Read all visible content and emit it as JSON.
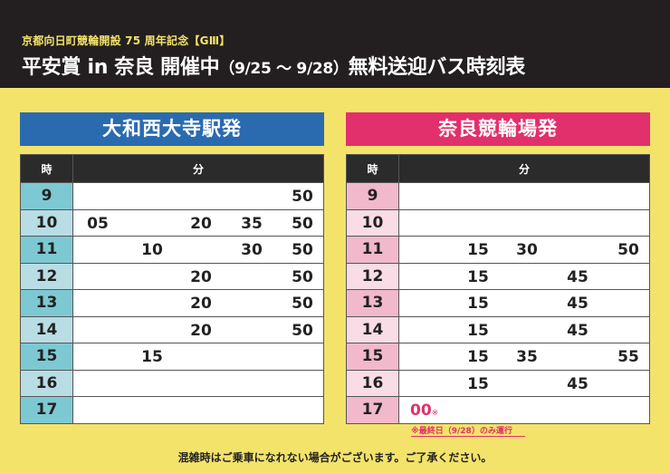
{
  "header": {
    "subtitle": "京都向日町競輪開設 75 周年記念【GⅢ】",
    "title_main": "平安賞 in 奈良 開催中",
    "title_dates": "（9/25 ～ 9/28）",
    "title_tail": "無料送迎バス時刻表"
  },
  "timetables": [
    {
      "title": "大和西大寺駅発",
      "col_hour": "時",
      "col_minute": "分",
      "rows": [
        {
          "hour": "9",
          "minutes": [
            "",
            "",
            "",
            "",
            "50"
          ]
        },
        {
          "hour": "10",
          "minutes": [
            "05",
            "",
            "20",
            "35",
            "50"
          ]
        },
        {
          "hour": "11",
          "minutes": [
            "",
            "10",
            "",
            "30",
            "50"
          ]
        },
        {
          "hour": "12",
          "minutes": [
            "",
            "",
            "20",
            "",
            "50"
          ]
        },
        {
          "hour": "13",
          "minutes": [
            "",
            "",
            "20",
            "",
            "50"
          ]
        },
        {
          "hour": "14",
          "minutes": [
            "",
            "",
            "20",
            "",
            "50"
          ]
        },
        {
          "hour": "15",
          "minutes": [
            "",
            "15",
            "",
            "",
            ""
          ]
        },
        {
          "hour": "16",
          "minutes": [
            "",
            "",
            "",
            "",
            ""
          ]
        },
        {
          "hour": "17",
          "minutes": [
            "",
            "",
            "",
            "",
            ""
          ]
        }
      ]
    },
    {
      "title": "奈良競輪場発",
      "col_hour": "時",
      "col_minute": "分",
      "rows": [
        {
          "hour": "9",
          "minutes": [
            "",
            "",
            "",
            "",
            ""
          ]
        },
        {
          "hour": "10",
          "minutes": [
            "",
            "",
            "",
            "",
            ""
          ]
        },
        {
          "hour": "11",
          "minutes": [
            "",
            "15",
            "30",
            "",
            "50"
          ]
        },
        {
          "hour": "12",
          "minutes": [
            "",
            "15",
            "",
            "45",
            ""
          ]
        },
        {
          "hour": "13",
          "minutes": [
            "",
            "15",
            "",
            "45",
            ""
          ]
        },
        {
          "hour": "14",
          "minutes": [
            "",
            "15",
            "",
            "45",
            ""
          ]
        },
        {
          "hour": "15",
          "minutes": [
            "",
            "15",
            "35",
            "",
            "55"
          ]
        },
        {
          "hour": "16",
          "minutes": [
            "",
            "15",
            "",
            "45",
            ""
          ]
        },
        {
          "hour": "17",
          "minutes": [
            "00",
            "",
            "",
            "",
            ""
          ]
        }
      ]
    }
  ],
  "special_mark": "※",
  "note": "※最終日（9/28）のみ運行",
  "footer": "混雑時はご乗車になれない場合がございます。ご了承ください。"
}
